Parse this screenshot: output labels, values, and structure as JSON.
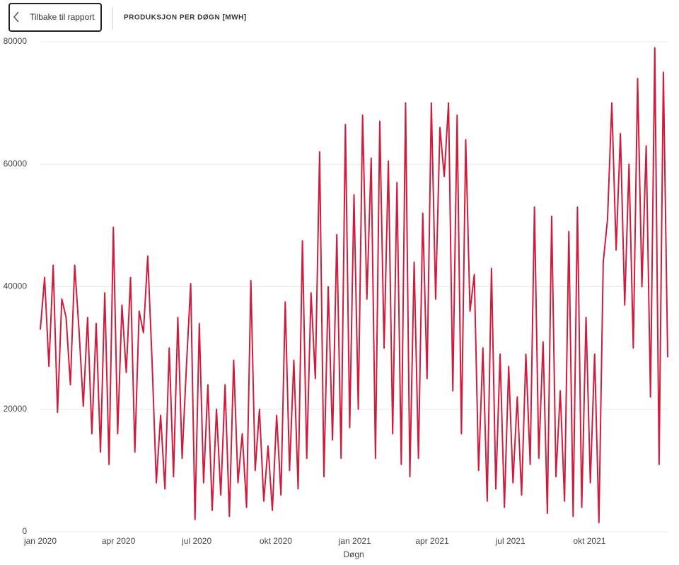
{
  "header": {
    "back_button": "Tilbake til rapport"
  },
  "chart_data": {
    "type": "line",
    "title": "PRODUKSJON PER DØGN [MWH]",
    "x_label": "Døgn",
    "color": "#d01c3c",
    "grid": true,
    "xlim": [
      0,
      730
    ],
    "ylim": [
      0,
      80000
    ],
    "yticks": [
      0,
      20000,
      40000,
      60000,
      80000
    ],
    "xticks": [
      {
        "value": 0,
        "label": "jan 2020"
      },
      {
        "value": 91,
        "label": "apr 2020"
      },
      {
        "value": 182,
        "label": "jul 2020"
      },
      {
        "value": 274,
        "label": "okt 2020"
      },
      {
        "value": 366,
        "label": "jan 2021"
      },
      {
        "value": 456,
        "label": "apr 2021"
      },
      {
        "value": 547,
        "label": "jul 2021"
      },
      {
        "value": 639,
        "label": "okt 2021"
      }
    ],
    "x": [
      0,
      5,
      10,
      15,
      20,
      25,
      30,
      35,
      40,
      45,
      50,
      55,
      60,
      65,
      70,
      75,
      80,
      85,
      90,
      95,
      100,
      105,
      110,
      115,
      120,
      125,
      130,
      135,
      140,
      145,
      150,
      155,
      160,
      165,
      170,
      175,
      180,
      185,
      190,
      195,
      200,
      205,
      210,
      215,
      220,
      225,
      230,
      235,
      240,
      245,
      250,
      255,
      260,
      265,
      270,
      275,
      280,
      285,
      290,
      295,
      300,
      305,
      310,
      315,
      320,
      325,
      330,
      335,
      340,
      345,
      350,
      355,
      360,
      365,
      370,
      375,
      380,
      385,
      390,
      395,
      400,
      405,
      410,
      415,
      420,
      425,
      430,
      435,
      440,
      445,
      450,
      455,
      460,
      465,
      470,
      475,
      480,
      485,
      490,
      495,
      500,
      505,
      510,
      515,
      520,
      525,
      530,
      535,
      540,
      545,
      550,
      555,
      560,
      565,
      570,
      575,
      580,
      585,
      590,
      595,
      600,
      605,
      610,
      615,
      620,
      625,
      630,
      635,
      640,
      645,
      650,
      655,
      660,
      665,
      670,
      675,
      680,
      685,
      690,
      695,
      700,
      705,
      710,
      715,
      720,
      725,
      730
    ],
    "values": [
      33000,
      41500,
      27000,
      43500,
      19500,
      38000,
      35000,
      24000,
      43500,
      33000,
      20500,
      35000,
      16000,
      34000,
      13000,
      39000,
      11000,
      49700,
      16000,
      37000,
      26000,
      41500,
      13000,
      36000,
      32500,
      45000,
      28000,
      8000,
      19000,
      7000,
      30000,
      9000,
      35000,
      12000,
      27000,
      40500,
      2000,
      34000,
      8000,
      24000,
      3500,
      20000,
      6000,
      24000,
      2500,
      28000,
      8000,
      16000,
      4000,
      41000,
      10000,
      20000,
      5000,
      14000,
      3500,
      19000,
      6000,
      37500,
      10000,
      28000,
      7000,
      47500,
      12000,
      39000,
      25000,
      62000,
      9000,
      40000,
      15000,
      48500,
      12000,
      66500,
      17000,
      55000,
      20000,
      68000,
      38000,
      61000,
      12000,
      67000,
      30000,
      60500,
      16000,
      57000,
      11000,
      70000,
      9000,
      44000,
      12000,
      52000,
      25000,
      70000,
      38000,
      66000,
      58000,
      70000,
      23000,
      68000,
      16000,
      64000,
      36000,
      42000,
      10000,
      30000,
      5000,
      43000,
      7000,
      29000,
      4000,
      27000,
      8000,
      22000,
      6000,
      29000,
      11000,
      53000,
      12000,
      31000,
      3000,
      51500,
      9000,
      23000,
      5000,
      49000,
      2500,
      53000,
      4000,
      35000,
      8000,
      29000,
      1500,
      44000,
      51000,
      70000,
      46000,
      65000,
      37000,
      60000,
      30000,
      74000,
      40000,
      63000,
      22000,
      79000,
      11000,
      75000,
      28500
    ]
  }
}
